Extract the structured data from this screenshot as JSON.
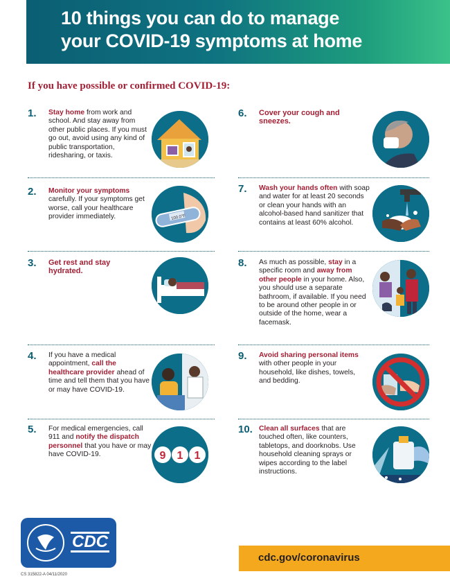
{
  "header": {
    "title_line1": "10 things you can do to manage",
    "title_line2": "your COVID-19 symptoms at home"
  },
  "subtitle": "If you have possible or confirmed COVID-19:",
  "items": [
    {
      "num": "1.",
      "bold": "Stay home",
      "rest": " from work and school. And stay away from other public places. If you must go out, avoid using any kind of public transportation, ridesharing, or taxis.",
      "icon": "house-icon"
    },
    {
      "num": "2.",
      "bold": "Monitor your symptoms",
      "rest": " carefully. If your symptoms get worse, call your healthcare provider immediately.",
      "icon": "thermometer-icon"
    },
    {
      "num": "3.",
      "bold": "Get rest and stay hydrated.",
      "rest": "",
      "icon": "bed-icon"
    },
    {
      "num": "4.",
      "pre": "If you have a medical appointment, ",
      "bold": "call the healthcare provider",
      "rest": " ahead of time and tell them that you have or may have COVID-19.",
      "icon": "phone-call-icon"
    },
    {
      "num": "5.",
      "pre": "For medical emergencies, call 911 and ",
      "bold": "notify the dispatch personnel",
      "rest": " that you have or may have COVID-19.",
      "icon": "911-icon"
    },
    {
      "num": "6.",
      "bold": "Cover your cough and sneezes.",
      "rest": "",
      "icon": "sneeze-icon"
    },
    {
      "num": "7.",
      "bold": "Wash your hands often",
      "rest": " with soap and water for at least 20 seconds or clean your hands with an alcohol-based hand sanitizer that contains at least 60% alcohol.",
      "icon": "handwash-icon"
    },
    {
      "num": "8.",
      "pre": "As much as possible, ",
      "bold": "stay",
      "mid": " in a specific room and ",
      "bold2": "away from other people",
      "rest": " in your home. Also, you should use a separate bathroom, if available. If you need to be around other people in or outside of the home, wear a facemask.",
      "icon": "family-icon"
    },
    {
      "num": "9.",
      "bold": "Avoid sharing personal items",
      "rest": " with other people in your household, like dishes, towels, and bedding.",
      "icon": "no-sharing-icon"
    },
    {
      "num": "10.",
      "bold": "Clean all surfaces",
      "rest": " that are touched often, like counters, tabletops, and doorknobs. Use household cleaning sprays or wipes according to the label instructions.",
      "icon": "spray-icon"
    }
  ],
  "nine_one_one": [
    "9",
    "1",
    "1"
  ],
  "thermometer_reading": "100.0°F",
  "footer": {
    "logo_text": "CDC",
    "url": "cdc.gov/coronavirus",
    "doc_number": "CS 315822-A  04/11/2020"
  },
  "colors": {
    "teal": "#0c6e89",
    "red": "#a31f34",
    "orange": "#f4a81d",
    "cdc_blue": "#1c5aa8"
  }
}
